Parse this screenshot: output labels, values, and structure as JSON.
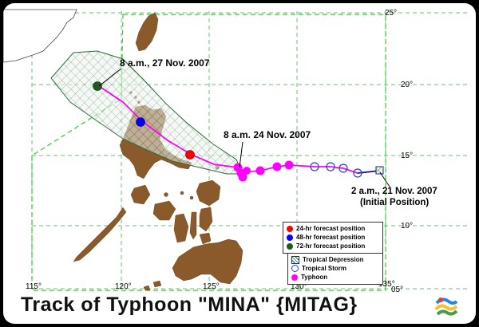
{
  "map": {
    "title": "Track of Typhoon \"MINA\" {MITAG}",
    "lat_ticks": [
      "25°",
      "20°",
      "15°",
      "10°",
      "05°"
    ],
    "lon_ticks": [
      "115°",
      "120°",
      "125°",
      "130°",
      "135°"
    ],
    "annotations": {
      "forecast_72": "8 a.m., 27 Nov. 2007",
      "point_24nov": "8 a.m. 24 Nov. 2007",
      "initial_line1": "2 a.m., 21 Nov. 2007",
      "initial_line2": "(Initial Position)"
    },
    "colors": {
      "land": "#8b5a2b",
      "typhoon": "#ff00ff",
      "tropical_storm": "#2a3fd4",
      "tropical_depression": "#1a237e",
      "forecast_24": "#ff0000",
      "forecast_48": "#0000ff",
      "forecast_72": "#1e5a1e",
      "grid": "#6fbf6f",
      "cone": "#2f6b3a"
    }
  },
  "legend_forecast": {
    "items": [
      {
        "label": "24-hr forecast position",
        "color": "#ff0000"
      },
      {
        "label": "48-hr forecast position",
        "color": "#0000ff"
      },
      {
        "label": "72-hr forecast position",
        "color": "#1e5a1e"
      }
    ]
  },
  "legend_intensity": {
    "items": [
      {
        "label": "Tropical Depression",
        "symbol": "hatched-square-icon"
      },
      {
        "label": "Tropical Storm",
        "symbol": "open-circle-icon"
      },
      {
        "label": "Typhoon",
        "symbol": "filled-magenta-circle-icon"
      }
    ]
  },
  "logo": {
    "name": "pagasa-logo-icon"
  }
}
